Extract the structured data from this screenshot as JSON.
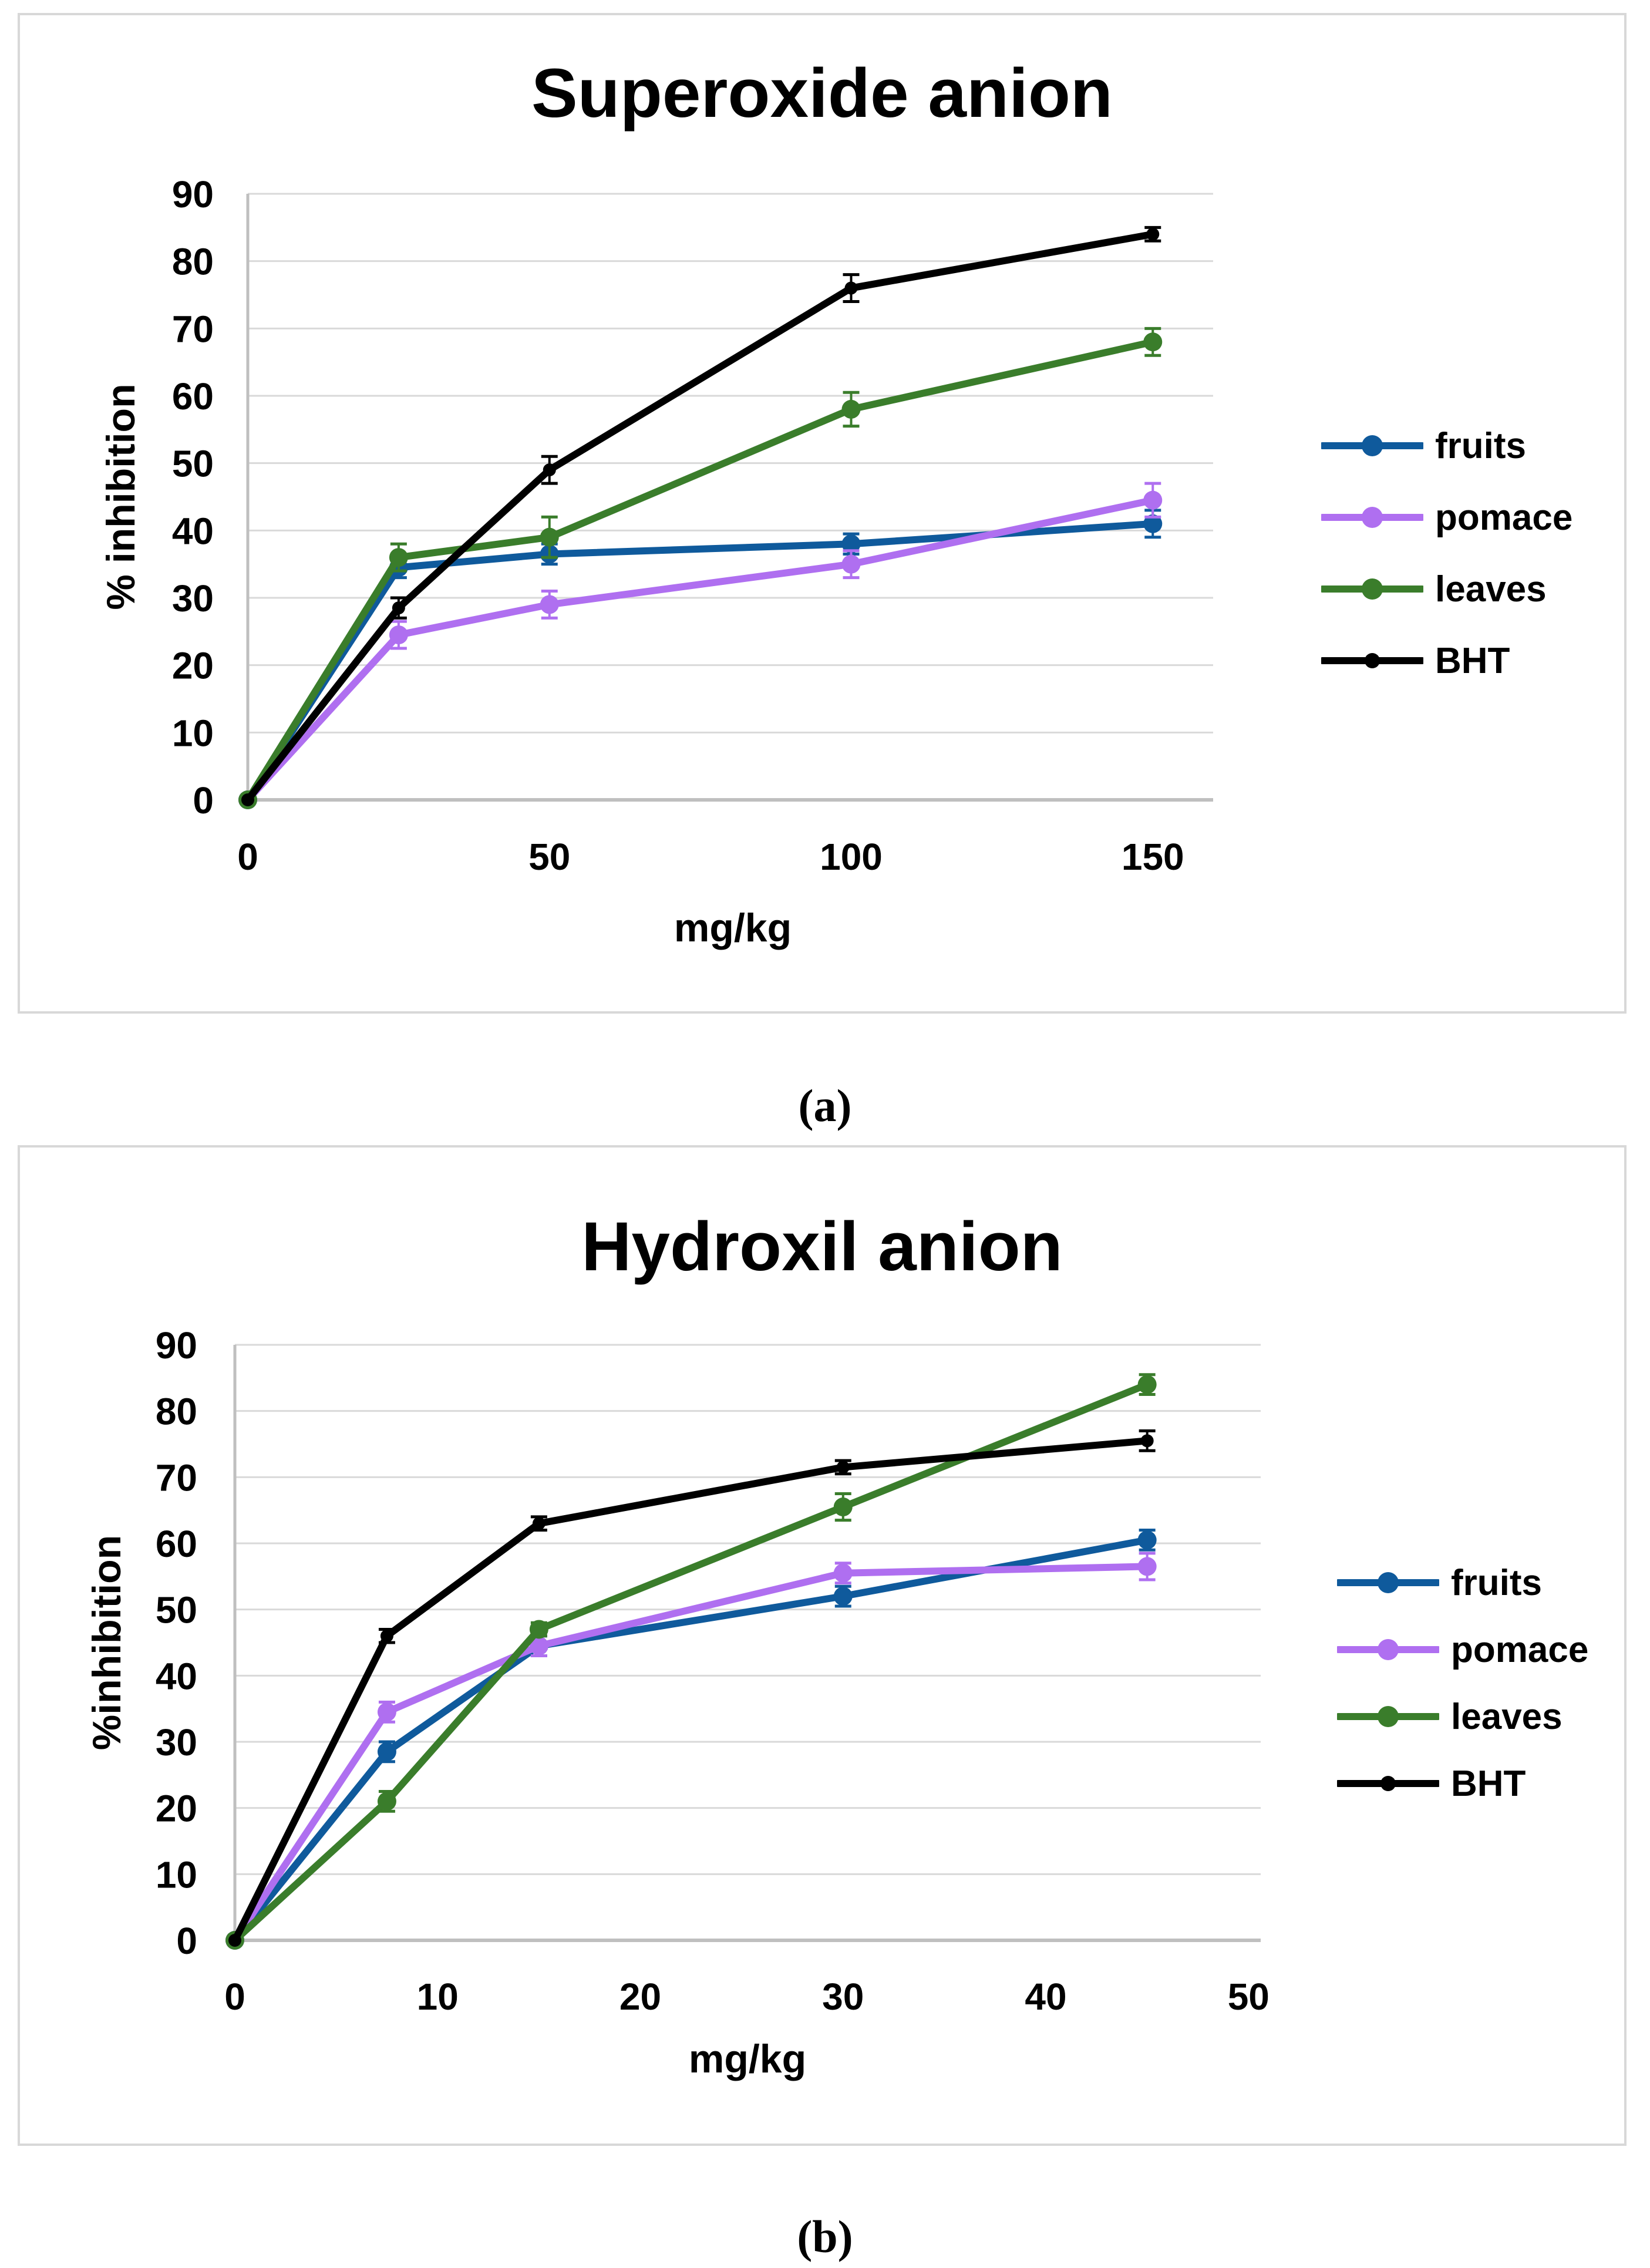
{
  "colors": {
    "fruits": "#0F5A9C",
    "pomace": "#AF6FF0",
    "leaves": "#3A7D2B",
    "BHT": "#000000",
    "grid": "#D9D9D9",
    "axis": "#BFBFBF",
    "text": "#000000",
    "panel_border": "#D8D8D8"
  },
  "panels": [
    {
      "label": "(a)"
    },
    {
      "label": "(b)"
    }
  ],
  "chart_data": [
    {
      "type": "line",
      "title": "Superoxide anion",
      "xlabel": "mg/kg",
      "ylabel": "% inhibition",
      "xlim": [
        0,
        160
      ],
      "ylim": [
        0,
        90
      ],
      "xticks": [
        0,
        50,
        100,
        150
      ],
      "yticks": [
        0,
        10,
        20,
        30,
        40,
        50,
        60,
        70,
        80,
        90
      ],
      "grid": "horizontal",
      "legend_position": "right",
      "legend": [
        "fruits",
        "pomace",
        "leaves",
        "BHT"
      ],
      "x": [
        0,
        25,
        50,
        100,
        150
      ],
      "series": [
        {
          "name": "fruits",
          "values": [
            0,
            34.5,
            36.5,
            38,
            41
          ],
          "errors": [
            0,
            1.5,
            1.5,
            1.5,
            2
          ]
        },
        {
          "name": "pomace",
          "values": [
            0,
            24.5,
            29,
            35,
            44.5
          ],
          "errors": [
            0,
            2,
            2,
            2,
            2.5
          ]
        },
        {
          "name": "leaves",
          "values": [
            0,
            36,
            39,
            58,
            68
          ],
          "errors": [
            0,
            2,
            3,
            2.5,
            2
          ]
        },
        {
          "name": "BHT",
          "values": [
            0,
            28.5,
            49,
            76,
            84
          ],
          "errors": [
            0,
            1.5,
            2,
            2,
            1
          ]
        }
      ]
    },
    {
      "type": "line",
      "title": "Hydroxil anion",
      "xlabel": "mg/kg",
      "ylabel": "%inhibition",
      "xlim": [
        0,
        50.6
      ],
      "ylim": [
        0,
        90
      ],
      "xticks": [
        0,
        10,
        20,
        30,
        40,
        50
      ],
      "yticks": [
        0,
        10,
        20,
        30,
        40,
        50,
        60,
        70,
        80,
        90
      ],
      "grid": "horizontal",
      "legend_position": "right",
      "legend": [
        "fruits",
        "pomace",
        "leaves",
        "BHT"
      ],
      "x": [
        0,
        7.5,
        15,
        30,
        45
      ],
      "series": [
        {
          "name": "fruits",
          "values": [
            0,
            28.5,
            44.5,
            52,
            60.5
          ],
          "errors": [
            0,
            1.5,
            1.5,
            1.5,
            1.5
          ]
        },
        {
          "name": "pomace",
          "values": [
            0,
            34.5,
            44.5,
            55.5,
            56.5
          ],
          "errors": [
            0,
            1.5,
            1.5,
            1.5,
            2
          ]
        },
        {
          "name": "leaves",
          "values": [
            0,
            21,
            47,
            65.5,
            84
          ],
          "errors": [
            0,
            1.5,
            1,
            2,
            1.5
          ]
        },
        {
          "name": "BHT",
          "values": [
            0,
            46,
            63,
            71.5,
            75.5
          ],
          "errors": [
            0,
            1,
            1,
            1,
            1.5
          ]
        }
      ]
    }
  ]
}
